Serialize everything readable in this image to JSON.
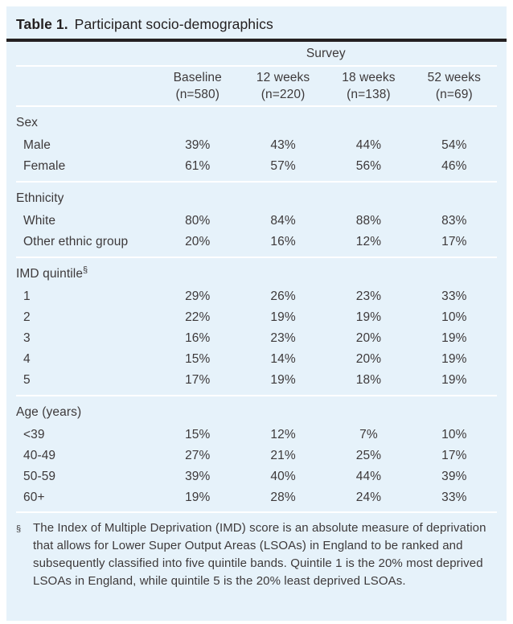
{
  "title": {
    "label": "Table 1.",
    "text": "Participant socio-demographics"
  },
  "table": {
    "spanner": "Survey",
    "columns": [
      {
        "name": "Baseline",
        "n": "(n=580)"
      },
      {
        "name": "12 weeks",
        "n": "(n=220)"
      },
      {
        "name": "18 weeks",
        "n": "(n=138)"
      },
      {
        "name": "52 weeks",
        "n": "(n=69)"
      }
    ],
    "sections": [
      {
        "header": "Sex",
        "rows": [
          {
            "label": "Male",
            "values": [
              "39%",
              "43%",
              "44%",
              "54%"
            ]
          },
          {
            "label": "Female",
            "values": [
              "61%",
              "57%",
              "56%",
              "46%"
            ]
          }
        ]
      },
      {
        "header": "Ethnicity",
        "rows": [
          {
            "label": "White",
            "values": [
              "80%",
              "84%",
              "88%",
              "83%"
            ]
          },
          {
            "label": "Other ethnic group",
            "values": [
              "20%",
              "16%",
              "12%",
              "17%"
            ]
          }
        ]
      },
      {
        "header": "IMD quintile",
        "header_sup": "§",
        "rows": [
          {
            "label": "1",
            "values": [
              "29%",
              "26%",
              "23%",
              "33%"
            ]
          },
          {
            "label": "2",
            "values": [
              "22%",
              "19%",
              "19%",
              "10%"
            ]
          },
          {
            "label": "3",
            "values": [
              "16%",
              "23%",
              "20%",
              "19%"
            ]
          },
          {
            "label": "4",
            "values": [
              "15%",
              "14%",
              "20%",
              "19%"
            ]
          },
          {
            "label": "5",
            "values": [
              "17%",
              "19%",
              "18%",
              "19%"
            ]
          }
        ]
      },
      {
        "header": "Age (years)",
        "rows": [
          {
            "label": "<39",
            "values": [
              "15%",
              "12%",
              "7%",
              "10%"
            ]
          },
          {
            "label": "40-49",
            "values": [
              "27%",
              "21%",
              "25%",
              "17%"
            ]
          },
          {
            "label": "50-59",
            "values": [
              "39%",
              "40%",
              "44%",
              "39%"
            ]
          },
          {
            "label": "60+",
            "values": [
              "19%",
              "28%",
              "24%",
              "33%"
            ]
          }
        ]
      }
    ]
  },
  "footnote": {
    "marker": "§",
    "text": "The Index of Multiple Deprivation (IMD) score is an absolute measure of deprivation that allows for Lower Super Output Areas (LSOAs) in England to be ranked and subsequently classified into five quintile bands. Quintile 1 is the 20% most deprived LSOAs in England, while quintile 5 is the 20% least deprived LSOAs."
  },
  "colors": {
    "panel_background": "#e6f2fa",
    "rule_dark": "#242021",
    "separator_white": "#ffffff",
    "text": "#3d393a"
  }
}
